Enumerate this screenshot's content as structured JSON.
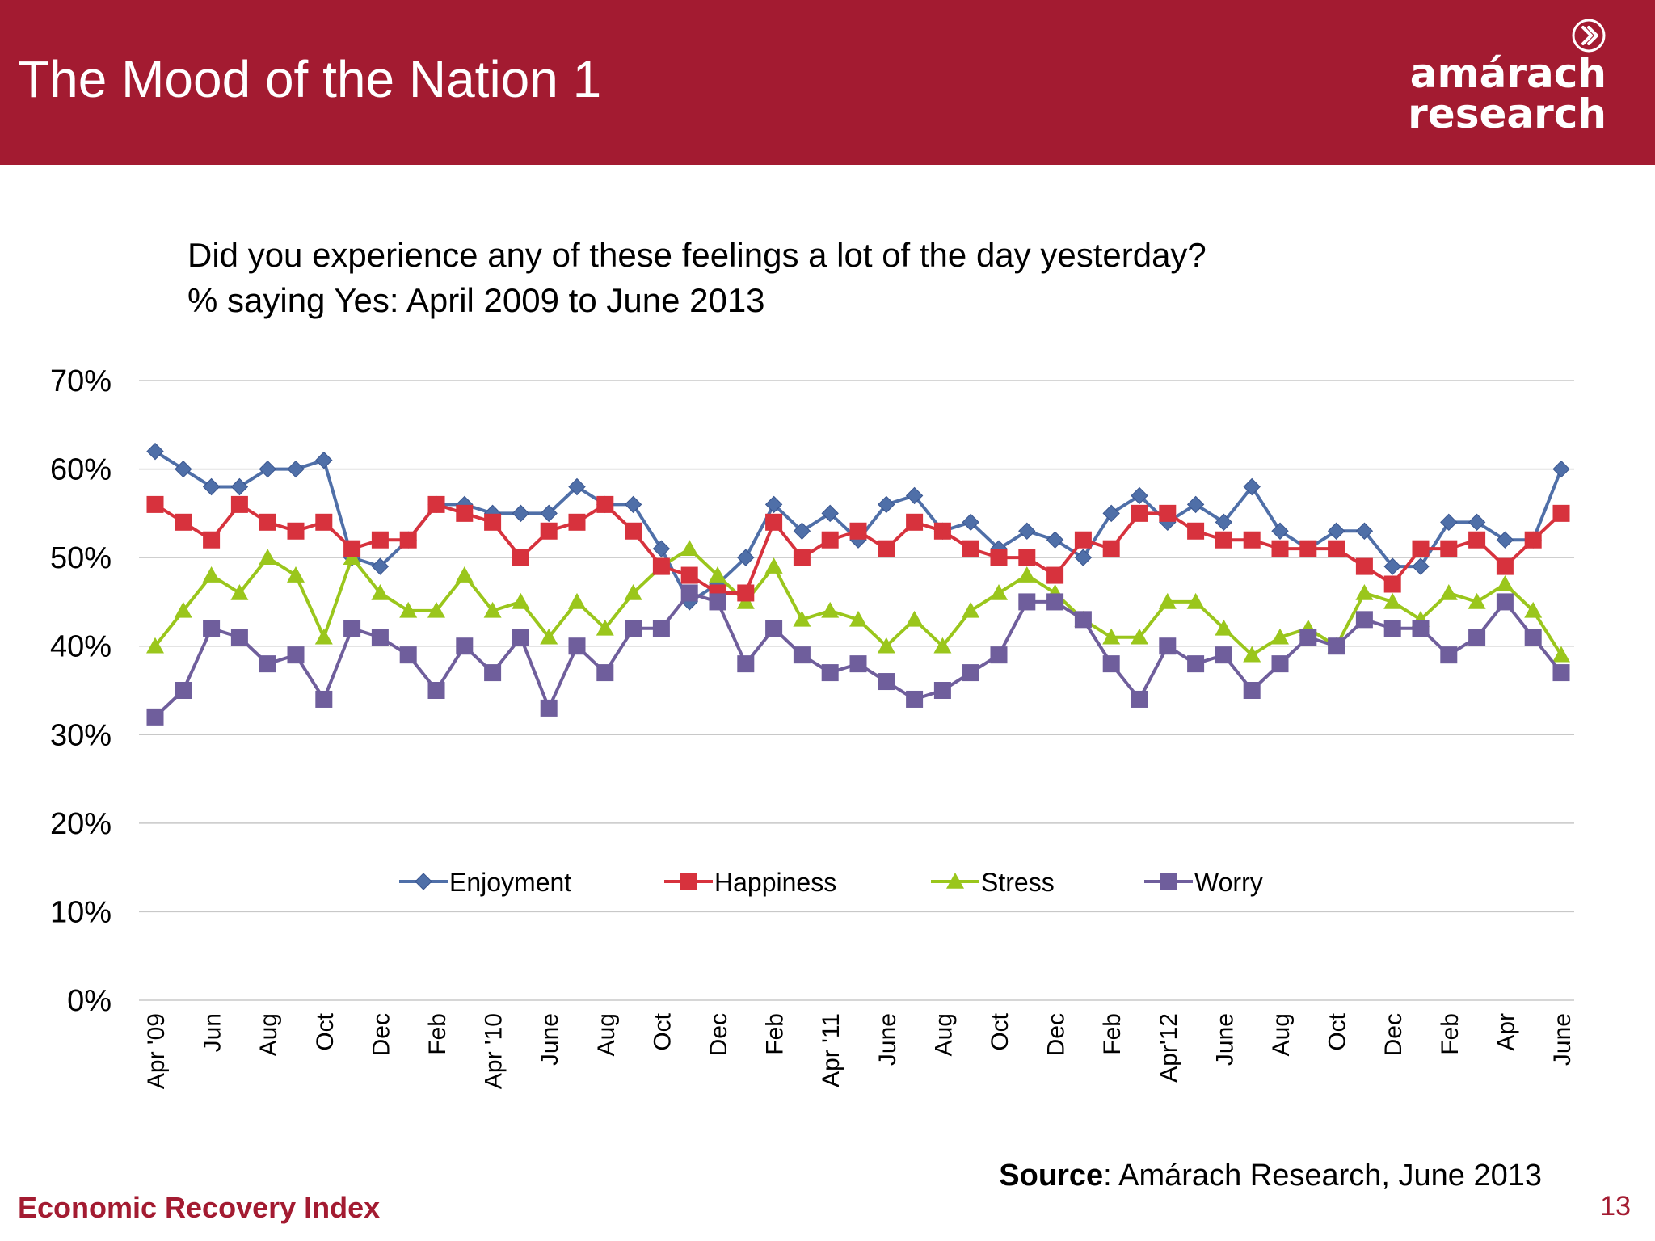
{
  "header": {
    "title": "The Mood of the Nation 1"
  },
  "logo": {
    "line1": "amárach",
    "line2": "research"
  },
  "question": {
    "line1": "Did you experience any of these feelings a lot of the day yesterday?",
    "line2": "% saying Yes: April 2009 to June 2013"
  },
  "footer": {
    "source_label": "Source",
    "source_text": ": Amárach Research, June 2013",
    "left": "Economic Recovery Index",
    "page": "13"
  },
  "colors": {
    "brand": "#a31b31",
    "Enjoyment": "#4f6fa8",
    "Happiness": "#d7323d",
    "Stress": "#9ac61c",
    "Worry": "#6f5e9c"
  },
  "chart_data": {
    "type": "line",
    "title": "",
    "xlabel": "",
    "ylabel": "",
    "ylim": [
      0,
      70
    ],
    "ytick_values": [
      0,
      10,
      20,
      30,
      40,
      50,
      60,
      70
    ],
    "ytick_labels": [
      "0%",
      "10%",
      "20%",
      "30%",
      "40%",
      "50%",
      "60%",
      "70%"
    ],
    "grid": true,
    "legend_position": "inside-bottom",
    "x_count": 51,
    "x_labels": [
      {
        "i": 0,
        "label": "Apr '09"
      },
      {
        "i": 2,
        "label": "Jun"
      },
      {
        "i": 4,
        "label": "Aug"
      },
      {
        "i": 6,
        "label": "Oct"
      },
      {
        "i": 8,
        "label": "Dec"
      },
      {
        "i": 10,
        "label": "Feb"
      },
      {
        "i": 12,
        "label": "Apr '10"
      },
      {
        "i": 14,
        "label": "June"
      },
      {
        "i": 16,
        "label": "Aug"
      },
      {
        "i": 18,
        "label": "Oct"
      },
      {
        "i": 20,
        "label": "Dec"
      },
      {
        "i": 22,
        "label": "Feb"
      },
      {
        "i": 24,
        "label": "Apr '11"
      },
      {
        "i": 26,
        "label": "June"
      },
      {
        "i": 28,
        "label": "Aug"
      },
      {
        "i": 30,
        "label": "Oct"
      },
      {
        "i": 32,
        "label": "Dec"
      },
      {
        "i": 34,
        "label": "Feb"
      },
      {
        "i": 36,
        "label": "Apr'12"
      },
      {
        "i": 38,
        "label": "June"
      },
      {
        "i": 40,
        "label": "Aug"
      },
      {
        "i": 42,
        "label": "Oct"
      },
      {
        "i": 44,
        "label": "Dec"
      },
      {
        "i": 46,
        "label": "Feb"
      },
      {
        "i": 48,
        "label": "Apr"
      },
      {
        "i": 50,
        "label": "June"
      }
    ],
    "series": [
      {
        "name": "Enjoyment",
        "marker": "diamond",
        "values": [
          62,
          60,
          58,
          58,
          60,
          60,
          61,
          50,
          49,
          52,
          56,
          56,
          55,
          55,
          55,
          58,
          56,
          56,
          51,
          45,
          47,
          50,
          56,
          53,
          55,
          52,
          56,
          57,
          53,
          54,
          51,
          53,
          52,
          50,
          55,
          57,
          54,
          56,
          54,
          58,
          53,
          51,
          53,
          53,
          49,
          49,
          54,
          54,
          52,
          52,
          60
        ]
      },
      {
        "name": "Happiness",
        "marker": "square",
        "values": [
          56,
          54,
          52,
          56,
          54,
          53,
          54,
          51,
          52,
          52,
          56,
          55,
          54,
          50,
          53,
          54,
          56,
          53,
          49,
          48,
          46,
          46,
          54,
          50,
          52,
          53,
          51,
          54,
          53,
          51,
          50,
          50,
          48,
          52,
          51,
          55,
          55,
          53,
          52,
          52,
          51,
          51,
          51,
          49,
          47,
          51,
          51,
          52,
          49,
          52,
          55
        ]
      },
      {
        "name": "Stress",
        "marker": "triangle",
        "values": [
          40,
          44,
          48,
          46,
          50,
          48,
          41,
          50,
          46,
          44,
          44,
          48,
          44,
          45,
          41,
          45,
          42,
          46,
          49,
          51,
          48,
          45,
          49,
          43,
          44,
          43,
          40,
          43,
          40,
          44,
          46,
          48,
          46,
          43,
          41,
          41,
          45,
          45,
          42,
          39,
          41,
          42,
          40,
          46,
          45,
          43,
          46,
          45,
          47,
          44,
          39
        ]
      },
      {
        "name": "Worry",
        "marker": "square",
        "values": [
          32,
          35,
          42,
          41,
          38,
          39,
          34,
          42,
          41,
          39,
          35,
          40,
          37,
          41,
          33,
          40,
          37,
          42,
          42,
          46,
          45,
          38,
          42,
          39,
          37,
          38,
          36,
          34,
          35,
          37,
          39,
          45,
          45,
          43,
          38,
          34,
          40,
          38,
          39,
          35,
          38,
          41,
          40,
          43,
          42,
          42,
          39,
          41,
          45,
          41,
          37
        ]
      }
    ]
  }
}
